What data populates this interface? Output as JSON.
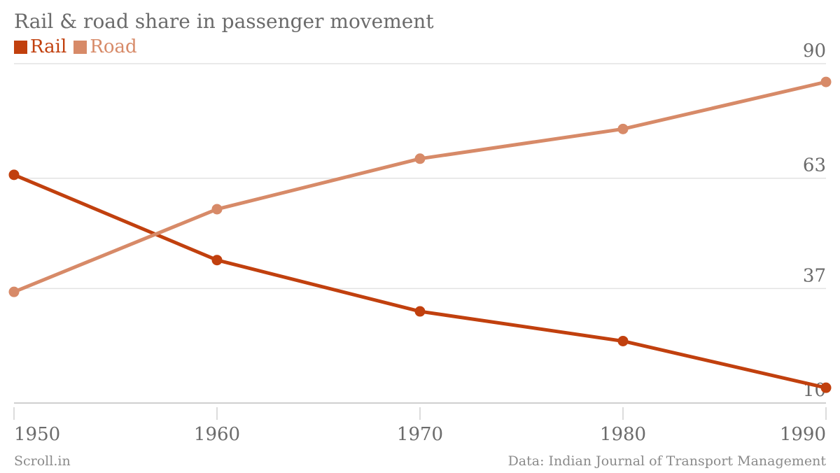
{
  "chart_data": {
    "type": "line",
    "title": "Rail & road share in passenger movement",
    "x": [
      1950,
      1960,
      1970,
      1980,
      1990
    ],
    "series": [
      {
        "name": "Rail",
        "color": "#c1400e",
        "values": [
          63.8,
          43.7,
          31.6,
          24.6,
          13.6
        ]
      },
      {
        "name": "Road",
        "color": "#d78a68",
        "values": [
          36.2,
          55.7,
          67.6,
          74.6,
          85.7
        ]
      }
    ],
    "y_ticks": [
      10,
      37,
      63,
      90
    ],
    "ylim": [
      10,
      90
    ],
    "xlim": [
      1950,
      1990
    ],
    "grid": true,
    "legend_position": "top-left",
    "xlabel": "",
    "ylabel": ""
  },
  "footer": {
    "source_brand": "Scroll.in",
    "data_source": "Data: Indian Journal of Transport Management"
  }
}
